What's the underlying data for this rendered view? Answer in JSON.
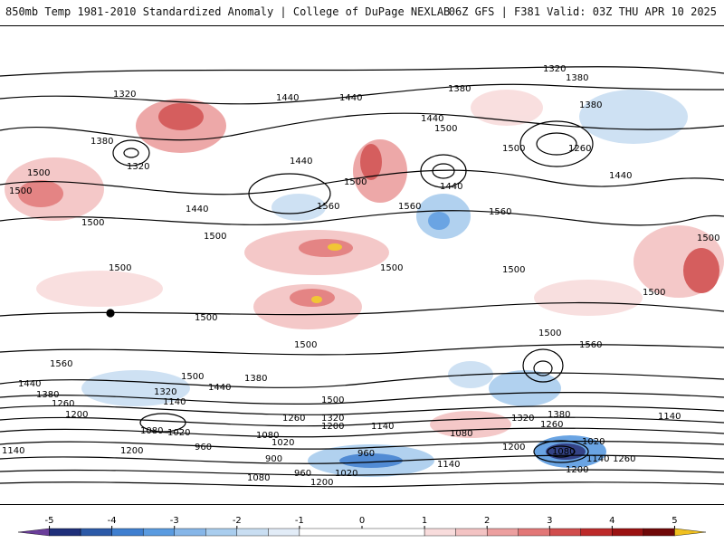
{
  "header": {
    "title": "850mb Temp 1981-2010 Standardized Anomaly | College of DuPage NEXLAB",
    "valid": "06Z GFS | F381 Valid: 03Z THU APR 10 2025"
  },
  "map": {
    "contour_labels": [
      "1320",
      "1380",
      "1380",
      "1320",
      "1440",
      "1440",
      "1380",
      "1260",
      "1440",
      "1500",
      "1500",
      "1440",
      "1500",
      "1380",
      "1320",
      "1440",
      "1500",
      "1560",
      "1560",
      "1440",
      "1500",
      "1500",
      "1500",
      "1500",
      "1560",
      "1440",
      "1500",
      "1500",
      "1500",
      "1500",
      "1500",
      "1500",
      "1500",
      "1560",
      "1560",
      "1500",
      "1440",
      "1380",
      "1440",
      "1380",
      "1320",
      "1260",
      "1140",
      "1200",
      "1500",
      "1260",
      "1320",
      "1200",
      "1140",
      "1380",
      "1260",
      "1320",
      "1140",
      "1080",
      "1020",
      "960",
      "1200",
      "1140",
      "1080",
      "1020",
      "900",
      "960",
      "1080",
      "960",
      "1020",
      "1080",
      "1140",
      "1200",
      "1020",
      "1200",
      "1140",
      "1260",
      "1080",
      "1200"
    ]
  },
  "colorbar": {
    "min": -5.5,
    "max": 5.5,
    "ticks": [
      "-5",
      "-4",
      "-3",
      "-2",
      "-1",
      "0",
      "1",
      "2",
      "3",
      "4",
      "5"
    ],
    "tick_values": [
      -5,
      -4,
      -3,
      -2,
      -1,
      0,
      1,
      2,
      3,
      4,
      5
    ],
    "colors": {
      "m5": "#6a3d9a",
      "m45": "#1f2f7a",
      "m4": "#2c5aa8",
      "m35": "#3f7fd0",
      "m3": "#5a9be0",
      "m25": "#86b6e8",
      "m2": "#a9cdee",
      "m15": "#c9def2",
      "m1": "#e2ecf7",
      "zero": "#ffffff",
      "p1": "#f8dcdc",
      "p15": "#f3c3c3",
      "p2": "#ec9f9f",
      "p25": "#e27777",
      "p3": "#d14d4d",
      "p35": "#bd2a2a",
      "p4": "#9b1212",
      "p45": "#700808",
      "p5": "#f0c020"
    }
  }
}
